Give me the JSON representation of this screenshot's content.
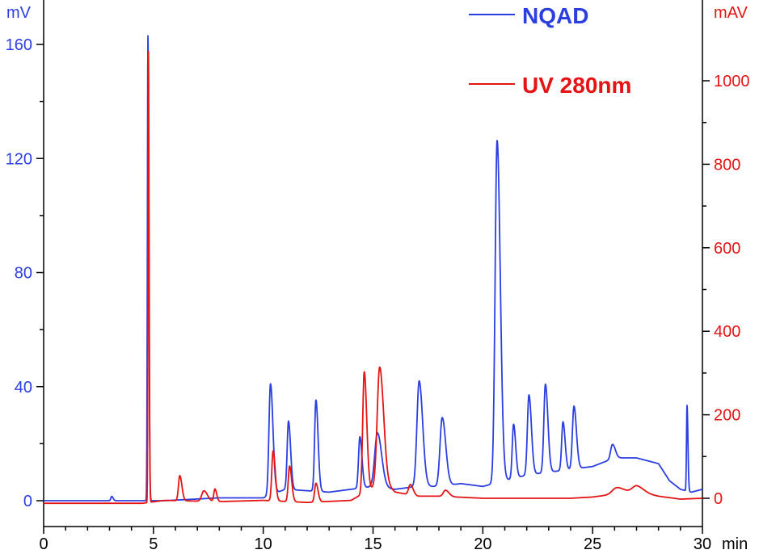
{
  "chart_data": {
    "type": "line",
    "x_unit": "min",
    "xlim": [
      0,
      30
    ],
    "x_ticks": [
      0,
      5,
      10,
      15,
      20,
      25,
      30
    ],
    "x_tick_labels": [
      "0",
      "5",
      "10",
      "15",
      "20",
      "25",
      "30"
    ],
    "left_axis": {
      "unit": "mV",
      "ylim": [
        0,
        160
      ],
      "ticks": [
        0,
        40,
        80,
        120,
        160
      ],
      "tick_labels": [
        "0",
        "40",
        "80",
        "120",
        "160"
      ],
      "color": "#2b3fe0"
    },
    "right_axis": {
      "unit": "mAV",
      "ylim": [
        0,
        1000
      ],
      "ticks": [
        0,
        200,
        400,
        600,
        800,
        1000
      ],
      "tick_labels": [
        "0",
        "200",
        "400",
        "600",
        "800",
        "1000"
      ],
      "color": "#e41414"
    },
    "legend_position": "top-right",
    "grid": false,
    "series": [
      {
        "name": "NQAD",
        "axis": "left",
        "color": "#2b3fe0",
        "baseline": [
          [
            0,
            0
          ],
          [
            3,
            0
          ],
          [
            4.6,
            0
          ],
          [
            4.9,
            0
          ],
          [
            5.5,
            0
          ],
          [
            8,
            1
          ],
          [
            10,
            1
          ],
          [
            11,
            4
          ],
          [
            13,
            3
          ],
          [
            14,
            4
          ],
          [
            15,
            5
          ],
          [
            16,
            4
          ],
          [
            17,
            5
          ],
          [
            18,
            5
          ],
          [
            19,
            6
          ],
          [
            20,
            5
          ],
          [
            21,
            7
          ],
          [
            22,
            9
          ],
          [
            23,
            10
          ],
          [
            24,
            11
          ],
          [
            25,
            12
          ],
          [
            26,
            15
          ],
          [
            27,
            15
          ],
          [
            28,
            13
          ],
          [
            28.5,
            7
          ],
          [
            29,
            4
          ],
          [
            29.5,
            3
          ],
          [
            30,
            4
          ]
        ],
        "peaks": [
          {
            "t": 3.1,
            "h": 1.5,
            "w": 0.04
          },
          {
            "t": 4.75,
            "h": 163,
            "w": 0.025
          },
          {
            "t": 10.33,
            "h": 39,
            "w": 0.07
          },
          {
            "t": 11.15,
            "h": 24,
            "w": 0.06
          },
          {
            "t": 12.4,
            "h": 32,
            "w": 0.06
          },
          {
            "t": 14.4,
            "h": 18,
            "w": 0.06
          },
          {
            "t": 15.2,
            "h": 19,
            "w": 0.12
          },
          {
            "t": 17.1,
            "h": 37,
            "w": 0.1
          },
          {
            "t": 18.15,
            "h": 24,
            "w": 0.1
          },
          {
            "t": 20.65,
            "h": 120,
            "w": 0.09
          },
          {
            "t": 21.4,
            "h": 19,
            "w": 0.06
          },
          {
            "t": 22.1,
            "h": 28,
            "w": 0.07
          },
          {
            "t": 22.85,
            "h": 31,
            "w": 0.07
          },
          {
            "t": 23.65,
            "h": 17,
            "w": 0.06
          },
          {
            "t": 24.15,
            "h": 22,
            "w": 0.07
          },
          {
            "t": 25.9,
            "h": 5,
            "w": 0.08
          },
          {
            "t": 29.3,
            "h": 30,
            "w": 0.025
          }
        ]
      },
      {
        "name": "UV 280nm",
        "axis": "right",
        "color": "#e41414",
        "baseline": [
          [
            0,
            -12
          ],
          [
            4.5,
            -12
          ],
          [
            5.5,
            -5
          ],
          [
            8,
            -8
          ],
          [
            10,
            -5
          ],
          [
            12,
            -10
          ],
          [
            14,
            -5
          ],
          [
            15.5,
            40
          ],
          [
            16,
            15
          ],
          [
            17,
            5
          ],
          [
            18,
            5
          ],
          [
            20,
            0
          ],
          [
            22,
            0
          ],
          [
            24,
            0
          ],
          [
            25,
            3
          ],
          [
            26,
            10
          ],
          [
            27,
            15
          ],
          [
            28,
            5
          ],
          [
            29,
            -2
          ],
          [
            30,
            0
          ]
        ],
        "peaks": [
          {
            "t": 4.77,
            "h": 1080,
            "w": 0.02
          },
          {
            "t": 6.2,
            "h": 60,
            "w": 0.06
          },
          {
            "t": 7.3,
            "h": 25,
            "w": 0.1
          },
          {
            "t": 7.8,
            "h": 30,
            "w": 0.05
          },
          {
            "t": 10.45,
            "h": 120,
            "w": 0.06
          },
          {
            "t": 11.2,
            "h": 85,
            "w": 0.06
          },
          {
            "t": 12.4,
            "h": 45,
            "w": 0.06
          },
          {
            "t": 14.6,
            "h": 290,
            "w": 0.07
          },
          {
            "t": 15.3,
            "h": 280,
            "w": 0.11
          },
          {
            "t": 16.7,
            "h": 25,
            "w": 0.08
          },
          {
            "t": 18.3,
            "h": 15,
            "w": 0.1
          },
          {
            "t": 26.1,
            "h": 15,
            "w": 0.2
          },
          {
            "t": 27.0,
            "h": 15,
            "w": 0.2
          }
        ]
      }
    ]
  }
}
